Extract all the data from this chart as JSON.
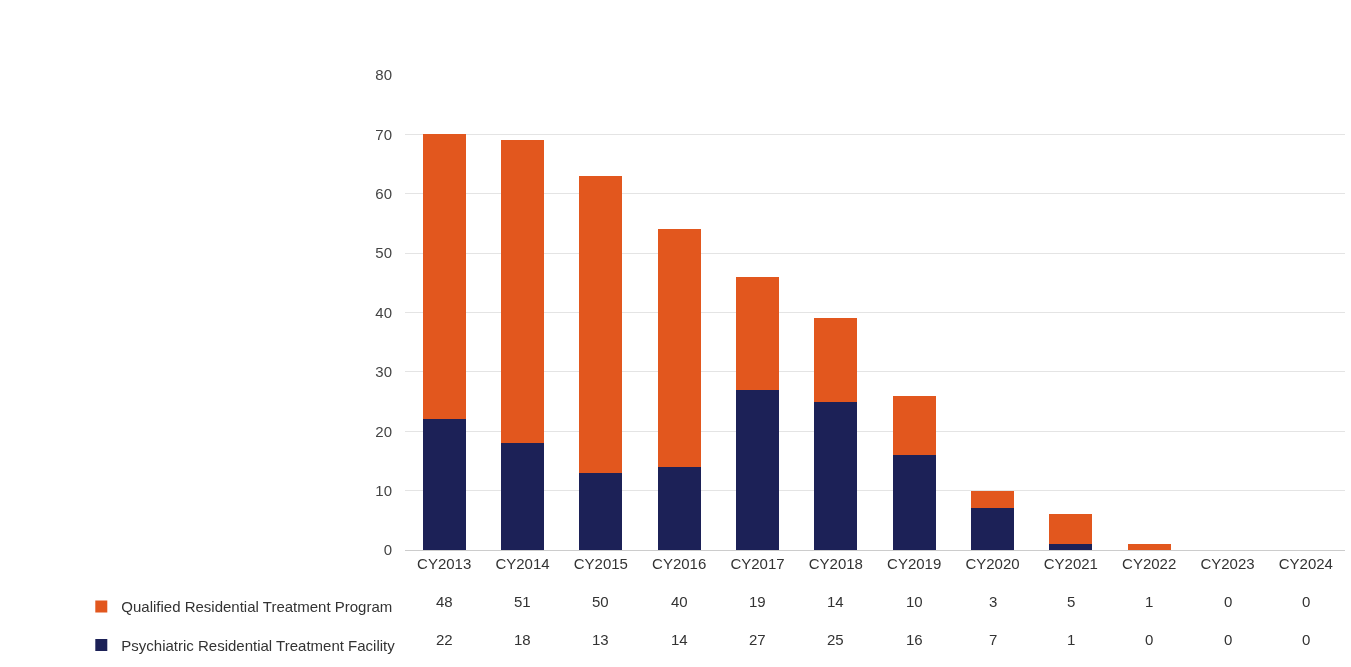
{
  "chart_data": {
    "type": "bar",
    "stacked": true,
    "data_labels": true,
    "grid": "y",
    "legend": "bottom left",
    "categories": [
      "CY2013",
      "CY2014",
      "CY2015",
      "CY2016",
      "CY2017",
      "CY2018",
      "CY2019",
      "CY2020",
      "CY2021",
      "CY2022",
      "CY2023",
      "CY2024"
    ],
    "series": [
      {
        "name": "Psychiatric Residential Treatment Facility",
        "color": "#1c2157",
        "values": [
          22,
          18,
          13,
          14,
          27,
          25,
          16,
          7,
          1,
          0,
          0,
          0
        ]
      },
      {
        "name": "Qualified Residential Treatment Program",
        "color": "#e2571e",
        "values": [
          48,
          51,
          50,
          40,
          19,
          14,
          10,
          3,
          5,
          1,
          0,
          0
        ]
      }
    ],
    "ylim": [
      0,
      80
    ],
    "yticks": [
      0,
      10,
      20,
      30,
      40,
      50,
      60,
      70,
      80
    ]
  }
}
